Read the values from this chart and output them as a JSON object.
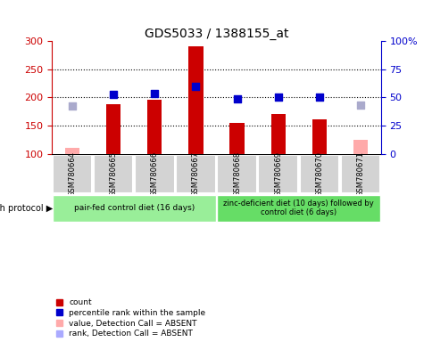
{
  "title": "GDS5033 / 1388155_at",
  "samples": [
    "GSM780664",
    "GSM780665",
    "GSM780666",
    "GSM780667",
    "GSM780668",
    "GSM780669",
    "GSM780670",
    "GSM780671"
  ],
  "bar_values": [
    null,
    188,
    196,
    291,
    155,
    171,
    161,
    null
  ],
  "bar_color_absent": "#ffaaaa",
  "bar_color_present": "#cc0000",
  "absent_bar_values": [
    110,
    null,
    null,
    null,
    null,
    null,
    null,
    125
  ],
  "blue_dot_values": [
    null,
    205,
    207,
    220,
    198,
    201,
    201,
    null
  ],
  "blue_dot_absent_values": [
    185,
    null,
    null,
    null,
    null,
    null,
    null,
    187
  ],
  "ylim_left": [
    100,
    300
  ],
  "ylim_right": [
    0,
    100
  ],
  "yticks_left": [
    100,
    150,
    200,
    250,
    300
  ],
  "yticks_right": [
    0,
    25,
    50,
    75,
    100
  ],
  "yticklabels_right": [
    "0",
    "25",
    "50",
    "75",
    "100%"
  ],
  "grid_values": [
    150,
    200,
    250
  ],
  "group1_label": "pair-fed control diet (16 days)",
  "group2_label": "zinc-deficient diet (10 days) followed by\ncontrol diet (6 days)",
  "group1_indices": [
    0,
    1,
    2,
    3
  ],
  "group2_indices": [
    4,
    5,
    6,
    7
  ],
  "growth_protocol_label": "growth protocol",
  "legend_items": [
    {
      "color": "#cc0000",
      "label": "count"
    },
    {
      "color": "#0000cc",
      "label": "percentile rank within the sample"
    },
    {
      "color": "#ffaaaa",
      "label": "value, Detection Call = ABSENT"
    },
    {
      "color": "#aaaaff",
      "label": "rank, Detection Call = ABSENT"
    }
  ],
  "bg_color_plot": "#ffffff",
  "bg_color_xticklabels": "#d3d3d3",
  "bg_color_group1": "#99ee99",
  "bg_color_group2": "#66dd66",
  "left_axis_color": "#cc0000",
  "right_axis_color": "#0000cc",
  "bar_width": 0.35,
  "dot_size": 40,
  "figsize": [
    4.85,
    3.84
  ],
  "dpi": 100
}
